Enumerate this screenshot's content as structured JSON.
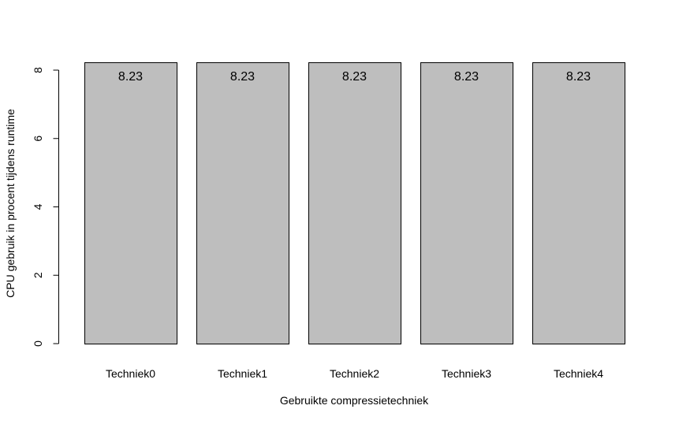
{
  "chart_data": {
    "type": "bar",
    "title": "",
    "xlabel": "Gebruikte compressietechniek",
    "ylabel": "CPU gebruik in procent tijdens runtime",
    "categories": [
      "Techniek0",
      "Techniek1",
      "Techniek2",
      "Techniek3",
      "Techniek4"
    ],
    "values": [
      8.23,
      8.23,
      8.23,
      8.23,
      8.23
    ],
    "value_labels": [
      "8.23",
      "8.23",
      "8.23",
      "8.23",
      "8.23"
    ],
    "ylim": [
      0,
      8
    ],
    "yticks": [
      0,
      2,
      4,
      6,
      8
    ],
    "ytick_labels": [
      "0",
      "2",
      "4",
      "6",
      "8"
    ],
    "grid": false,
    "colors": {
      "bar_fill": "#bebebe",
      "bar_stroke": "#000000"
    }
  }
}
